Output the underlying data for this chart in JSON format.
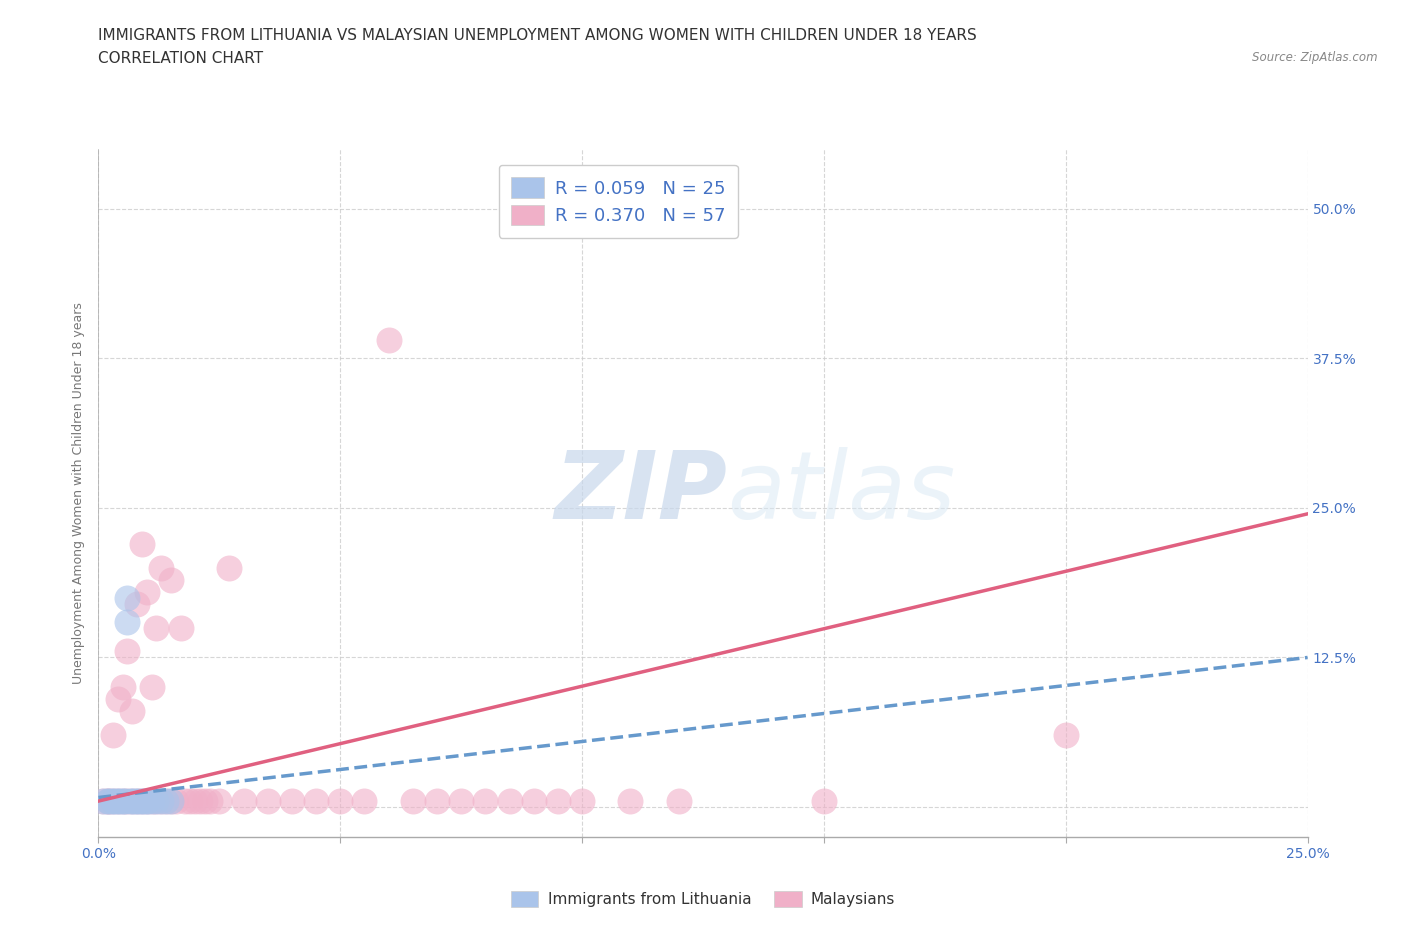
{
  "title_line1": "IMMIGRANTS FROM LITHUANIA VS MALAYSIAN UNEMPLOYMENT AMONG WOMEN WITH CHILDREN UNDER 18 YEARS",
  "title_line2": "CORRELATION CHART",
  "source_text": "Source: ZipAtlas.com",
  "ylabel": "Unemployment Among Women with Children Under 18 years",
  "xlim": [
    0.0,
    0.25
  ],
  "ylim": [
    -0.025,
    0.55
  ],
  "xticks": [
    0.0,
    0.05,
    0.1,
    0.15,
    0.2,
    0.25
  ],
  "xtick_labels": [
    "0.0%",
    "",
    "",
    "",
    "",
    "25.0%"
  ],
  "ytick_positions": [
    0.0,
    0.125,
    0.25,
    0.375,
    0.5
  ],
  "ytick_labels": [
    "",
    "12.5%",
    "25.0%",
    "37.5%",
    "50.0%"
  ],
  "watermark_zip": "ZIP",
  "watermark_atlas": "atlas",
  "legend_r1": "R = 0.059   N = 25",
  "legend_r2": "R = 0.370   N = 57",
  "color_blue": "#aac4ea",
  "color_pink": "#f0b0c8",
  "color_blue_line": "#6699cc",
  "color_pink_line": "#e06080",
  "blue_scatter_x": [
    0.001,
    0.002,
    0.002,
    0.003,
    0.003,
    0.004,
    0.004,
    0.005,
    0.005,
    0.006,
    0.006,
    0.006,
    0.007,
    0.007,
    0.008,
    0.008,
    0.009,
    0.009,
    0.01,
    0.01,
    0.011,
    0.012,
    0.013,
    0.014,
    0.015
  ],
  "blue_scatter_y": [
    0.005,
    0.005,
    0.005,
    0.005,
    0.005,
    0.005,
    0.005,
    0.005,
    0.005,
    0.175,
    0.005,
    0.155,
    0.005,
    0.005,
    0.005,
    0.005,
    0.005,
    0.005,
    0.005,
    0.005,
    0.005,
    0.005,
    0.005,
    0.005,
    0.005
  ],
  "pink_scatter_x": [
    0.001,
    0.002,
    0.002,
    0.003,
    0.003,
    0.004,
    0.004,
    0.005,
    0.005,
    0.006,
    0.006,
    0.007,
    0.007,
    0.008,
    0.008,
    0.009,
    0.009,
    0.01,
    0.01,
    0.011,
    0.011,
    0.012,
    0.012,
    0.013,
    0.013,
    0.014,
    0.015,
    0.015,
    0.016,
    0.017,
    0.018,
    0.019,
    0.02,
    0.021,
    0.022,
    0.023,
    0.025,
    0.027,
    0.03,
    0.035,
    0.04,
    0.045,
    0.05,
    0.055,
    0.06,
    0.065,
    0.07,
    0.075,
    0.08,
    0.085,
    0.09,
    0.095,
    0.1,
    0.11,
    0.12,
    0.15,
    0.2
  ],
  "pink_scatter_y": [
    0.005,
    0.005,
    0.005,
    0.005,
    0.06,
    0.005,
    0.09,
    0.005,
    0.1,
    0.005,
    0.13,
    0.005,
    0.08,
    0.005,
    0.17,
    0.005,
    0.22,
    0.005,
    0.18,
    0.005,
    0.1,
    0.005,
    0.15,
    0.005,
    0.2,
    0.005,
    0.005,
    0.19,
    0.005,
    0.15,
    0.005,
    0.005,
    0.005,
    0.005,
    0.005,
    0.005,
    0.005,
    0.2,
    0.005,
    0.005,
    0.005,
    0.005,
    0.005,
    0.005,
    0.39,
    0.005,
    0.005,
    0.005,
    0.005,
    0.005,
    0.005,
    0.005,
    0.005,
    0.005,
    0.005,
    0.005,
    0.06
  ],
  "blue_trend_x": [
    0.0,
    0.25
  ],
  "blue_trend_y": [
    0.008,
    0.125
  ],
  "pink_trend_x": [
    0.0,
    0.25
  ],
  "pink_trend_y": [
    0.005,
    0.245
  ],
  "grid_color": "#cccccc",
  "background_color": "#ffffff",
  "title_fontsize": 11,
  "axis_label_fontsize": 9,
  "tick_fontsize": 10,
  "tick_color": "#4472c4",
  "legend_fontsize": 13,
  "legend_label_color": "#4472c4"
}
